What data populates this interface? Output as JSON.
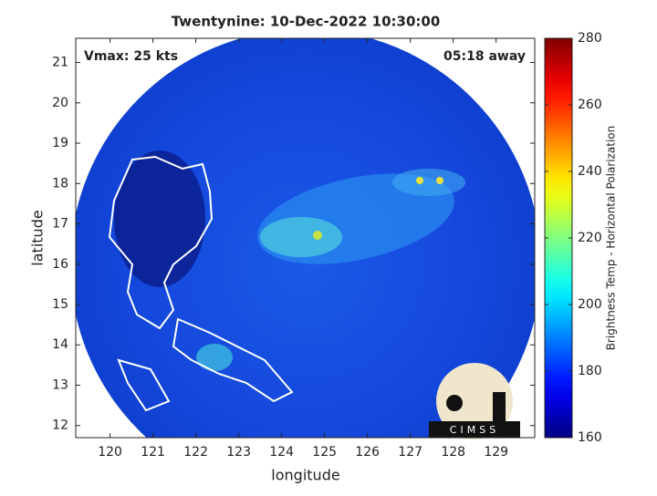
{
  "chart_data": {
    "type": "image",
    "title": "Twentynine: 10-Dec-2022 10:30:00",
    "xlabel": "longitude",
    "ylabel": "latitude",
    "annotations": [
      "Vmax: 25 kts",
      "05:18 away"
    ],
    "logo": "CIMSS",
    "xlim": [
      119.2,
      129.9
    ],
    "ylim": [
      11.7,
      21.6
    ],
    "xticks": [
      120,
      121,
      122,
      123,
      124,
      125,
      126,
      127,
      128,
      129
    ],
    "yticks": [
      12,
      13,
      14,
      15,
      16,
      17,
      18,
      19,
      20,
      21
    ],
    "colorbar": {
      "label": "Brightness Temp - Horizontal Polarization",
      "lim": [
        160,
        280
      ],
      "ticks": [
        160,
        180,
        200,
        220,
        240,
        260,
        280
      ],
      "colormap": "jet"
    }
  }
}
